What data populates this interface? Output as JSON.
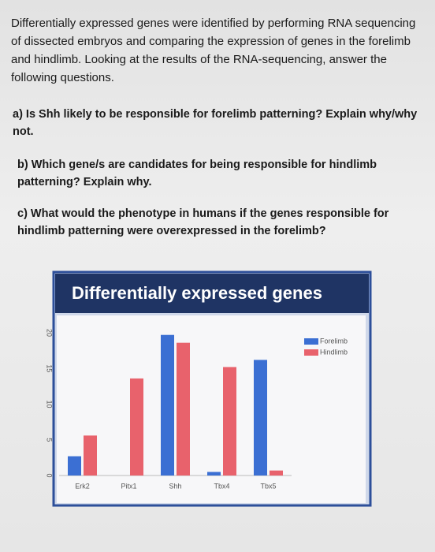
{
  "question": {
    "intro": "Differentially expressed genes were identified by performing RNA sequencing of dissected embryos and comparing the expression of genes in the forelimb and hindlimb. Looking at the results of the RNA-sequencing, answer the following questions.",
    "parts": [
      "a) Is Shh likely to be responsible for forelimb patterning? Explain why/why not.",
      "b) Which gene/s are candidates for being responsible for hindlimb patterning? Explain why.",
      "c) What would the phenotype in humans if the genes responsible for hindlimb patterning were overexpressed in the forelimb?"
    ]
  },
  "chart_data": {
    "type": "bar",
    "title": "Differentially expressed genes",
    "categories": [
      "Erk2",
      "Pitx1",
      "Shh",
      "Tbx4",
      "Tbx5"
    ],
    "series": [
      {
        "name": "Forelimb",
        "color": "#3b6fd3",
        "values": [
          2.7,
          0,
          19.7,
          0.5,
          16.2
        ]
      },
      {
        "name": "Hindlimb",
        "color": "#e8626c",
        "values": [
          5.6,
          13.6,
          18.6,
          15.2,
          0.7
        ]
      }
    ],
    "ylim": [
      0,
      20
    ],
    "yticks": [
      0,
      5,
      10,
      15,
      20
    ],
    "grid": false,
    "legend": "top-right"
  }
}
